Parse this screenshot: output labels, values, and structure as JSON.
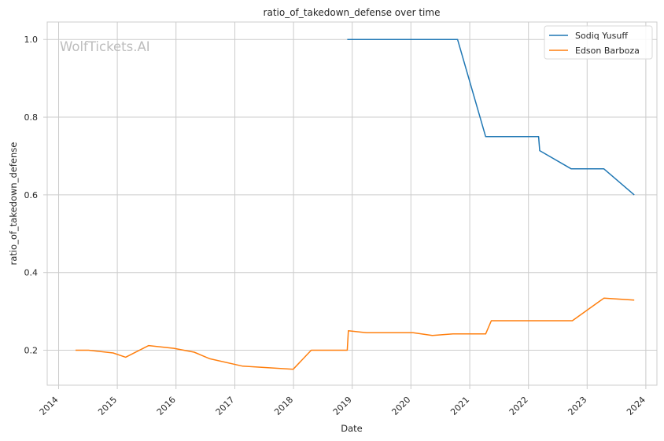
{
  "chart_data": {
    "type": "line",
    "title": "ratio_of_takedown_defense over time",
    "xlabel": "Date",
    "ylabel": "ratio_of_takedown_defense",
    "watermark": "WolfTickets.AI",
    "x_tick_labels": [
      "2014",
      "2015",
      "2016",
      "2017",
      "2018",
      "2019",
      "2020",
      "2021",
      "2022",
      "2023",
      "2024"
    ],
    "y_tick_labels": [
      "0.2",
      "0.4",
      "0.6",
      "0.8",
      "1.0"
    ],
    "y_ticks": [
      0.2,
      0.4,
      0.6,
      0.8,
      1.0
    ],
    "xlim": [
      "2013-10-22",
      "2024-03-10"
    ],
    "ylim": [
      0.11,
      1.045
    ],
    "grid": true,
    "legend_position": "top-right",
    "series": [
      {
        "name": "Sodiq Yusuff",
        "color": "#1f77b4",
        "points": [
          [
            "2018-12-01",
            1.0
          ],
          [
            "2020-10-17",
            1.0
          ],
          [
            "2021-04-10",
            0.75
          ],
          [
            "2022-03-05",
            0.75
          ],
          [
            "2022-03-12",
            0.714
          ],
          [
            "2022-09-24",
            0.667
          ],
          [
            "2023-04-15",
            0.667
          ],
          [
            "2023-10-21",
            0.6
          ]
        ]
      },
      {
        "name": "Edson Barboza",
        "color": "#ff7f0e",
        "points": [
          [
            "2014-04-16",
            0.2
          ],
          [
            "2014-07-06",
            0.2
          ],
          [
            "2014-12-06",
            0.193
          ],
          [
            "2015-02-22",
            0.182
          ],
          [
            "2015-07-15",
            0.212
          ],
          [
            "2015-12-19",
            0.205
          ],
          [
            "2016-04-23",
            0.195
          ],
          [
            "2016-07-30",
            0.178
          ],
          [
            "2017-02-19",
            0.159
          ],
          [
            "2017-12-30",
            0.151
          ],
          [
            "2018-04-21",
            0.2
          ],
          [
            "2018-12-01",
            0.2
          ],
          [
            "2018-12-08",
            0.25
          ],
          [
            "2019-03-30",
            0.245
          ],
          [
            "2020-01-15",
            0.245
          ],
          [
            "2020-05-13",
            0.238
          ],
          [
            "2020-09-19",
            0.242
          ],
          [
            "2021-04-10",
            0.242
          ],
          [
            "2021-05-15",
            0.276
          ],
          [
            "2022-01-15",
            0.276
          ],
          [
            "2022-10-01",
            0.276
          ],
          [
            "2023-04-15",
            0.334
          ],
          [
            "2023-10-21",
            0.329
          ]
        ]
      }
    ]
  }
}
